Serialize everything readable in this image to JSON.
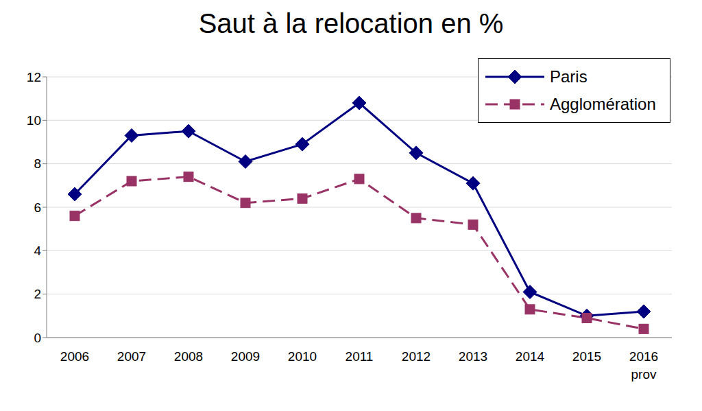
{
  "chart_data": {
    "type": "line",
    "title": "Saut à la relocation en %",
    "categories": [
      "2006",
      "2007",
      "2008",
      "2009",
      "2010",
      "2011",
      "2012",
      "2013",
      "2014",
      "2015",
      "2016\nprov"
    ],
    "series": [
      {
        "name": "Paris",
        "color": "#000080",
        "marker": "diamond",
        "line_style": "solid",
        "values": [
          6.6,
          9.3,
          9.5,
          8.1,
          8.9,
          10.8,
          8.5,
          7.1,
          2.1,
          1.0,
          1.2
        ]
      },
      {
        "name": "Agglomération",
        "color": "#993366",
        "marker": "square",
        "line_style": "dashed",
        "values": [
          5.6,
          7.2,
          7.4,
          6.2,
          6.4,
          7.3,
          5.5,
          5.2,
          1.3,
          0.9,
          0.4
        ]
      }
    ],
    "ylim": [
      0,
      12
    ],
    "yticks": [
      0,
      2,
      4,
      6,
      8,
      10,
      12
    ],
    "grid": true,
    "legend": "top-right"
  }
}
